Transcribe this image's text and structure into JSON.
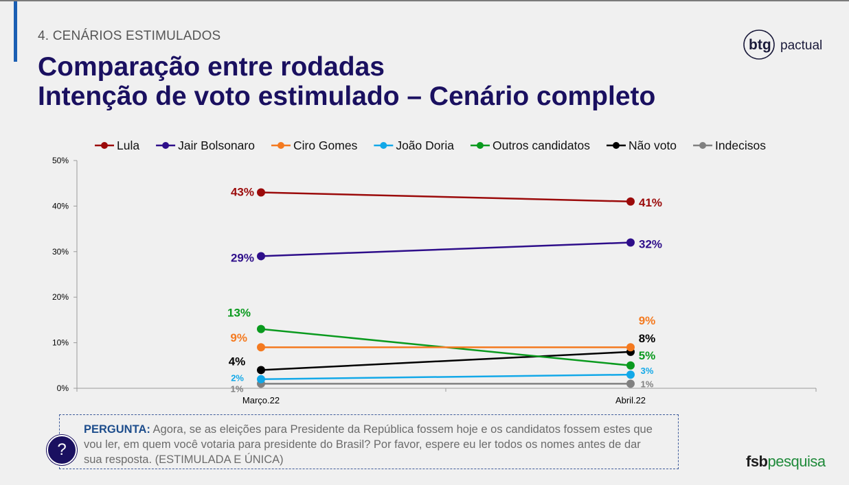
{
  "header": {
    "section": "4. CENÁRIOS ESTIMULADOS",
    "title_line1": "Comparação entre rodadas",
    "title_line2": "Intenção de voto estimulado – Cenário completo"
  },
  "logos": {
    "btg_prefix": "btg",
    "btg_suffix": "pactual",
    "fsb_prefix": "fsb",
    "fsb_suffix": "pesquisa"
  },
  "question": {
    "label": "PERGUNTA:",
    "text": " Agora, se as eleições para Presidente da República fossem hoje e os candidatos fossem estes que vou ler, em quem você votaria para presidente do Brasil? Por favor, espere eu ler todos os nomes antes de dar sua resposta. (ESTIMULADA E ÚNICA)",
    "icon": "question-mark-icon",
    "icon_glyph": "?"
  },
  "chart_data": {
    "type": "line",
    "categories": [
      "Março.22",
      "Abril.22"
    ],
    "ylim": [
      0,
      50
    ],
    "yticks": [
      "0%",
      "10%",
      "20%",
      "30%",
      "40%",
      "50%"
    ],
    "ytick_values": [
      0,
      10,
      20,
      30,
      40,
      50
    ],
    "grid": false,
    "legend_position": "top",
    "series": [
      {
        "name": "Lula",
        "color": "#9b0a0a",
        "values": [
          43,
          41
        ],
        "labels": [
          "43%",
          "41%"
        ]
      },
      {
        "name": "Jair Bolsonaro",
        "color": "#2e0e8a",
        "values": [
          29,
          32
        ],
        "labels": [
          "29%",
          "32%"
        ]
      },
      {
        "name": "Ciro Gomes",
        "color": "#f47a20",
        "values": [
          9,
          9
        ],
        "labels": [
          "9%",
          "9%"
        ]
      },
      {
        "name": "João Doria",
        "color": "#12a8e8",
        "values": [
          2,
          3
        ],
        "labels": [
          "2%",
          "3%"
        ]
      },
      {
        "name": "Outros candidatos",
        "color": "#0a9a1e",
        "values": [
          13,
          5
        ],
        "labels": [
          "13%",
          "5%"
        ]
      },
      {
        "name": "Não voto",
        "color": "#000000",
        "values": [
          4,
          8
        ],
        "labels": [
          "4%",
          "8%"
        ]
      },
      {
        "name": "Indecisos",
        "color": "#808080",
        "values": [
          1,
          1
        ],
        "labels": [
          "1%",
          "1%"
        ]
      }
    ]
  }
}
